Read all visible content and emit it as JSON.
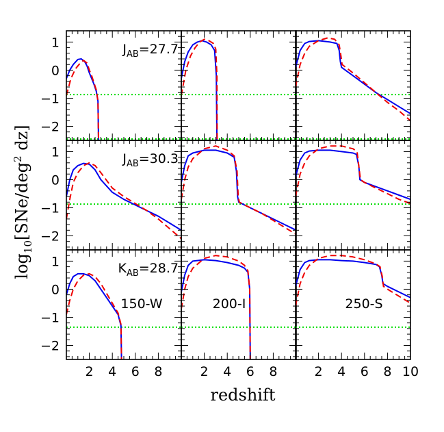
{
  "figure": {
    "xlabel": "redshift",
    "ylabel_main": "log",
    "ylabel_sub": "10",
    "ylabel_rest": "[SNe/deg",
    "ylabel_sup": "2",
    "ylabel_end": " dz]"
  },
  "chart_data": {
    "type": "line",
    "layout": "3x3 grid",
    "xlabel": "redshift",
    "ylabel": "log10[SNe/deg² dz]",
    "xlim": [
      0,
      10
    ],
    "ylim": [
      -2.5,
      1.4
    ],
    "x_ticks": [
      2,
      4,
      6,
      8,
      10
    ],
    "y_ticks": [
      -2,
      -1,
      0,
      1
    ],
    "line_colors": {
      "solid": "#0000ee",
      "dashed": "#ee0000",
      "dotted": "#00dd00"
    },
    "panels": [
      {
        "row": 0,
        "col": 0,
        "label": "J",
        "label_sub": "AB",
        "label_value": "=27.7",
        "threshold_lines": [
          -0.87,
          -2.45
        ],
        "series": [
          {
            "style": "solid",
            "x": [
              0,
              0.3,
              0.6,
              1.0,
              1.3,
              1.6,
              1.8,
              2.0,
              2.2,
              2.4,
              2.6,
              2.75,
              2.8
            ],
            "y": [
              -0.3,
              0.0,
              0.2,
              0.38,
              0.4,
              0.3,
              0.15,
              -0.1,
              -0.3,
              -0.5,
              -0.75,
              -1.1,
              -2.5
            ]
          },
          {
            "style": "dashed",
            "x": [
              0,
              0.4,
              0.8,
              1.2,
              1.5,
              1.8,
              2.0,
              2.2,
              2.4,
              2.6,
              2.75,
              2.8
            ],
            "y": [
              -0.9,
              -0.3,
              0.05,
              0.25,
              0.35,
              0.25,
              0.0,
              -0.2,
              -0.45,
              -0.7,
              -1.1,
              -2.5
            ]
          }
        ]
      },
      {
        "row": 0,
        "col": 1,
        "threshold_lines": [
          -0.87,
          -2.45
        ],
        "series": [
          {
            "style": "solid",
            "x": [
              0,
              0.3,
              0.6,
              1.0,
              1.4,
              1.8,
              2.2,
              2.6,
              2.9,
              3.05,
              3.1
            ],
            "y": [
              -0.3,
              0.3,
              0.65,
              0.9,
              1.0,
              1.05,
              1.0,
              0.9,
              0.7,
              -0.2,
              -2.5
            ]
          },
          {
            "style": "dashed",
            "x": [
              0,
              0.4,
              0.8,
              1.2,
              1.6,
              2.0,
              2.4,
              2.8,
              3.0,
              3.1,
              3.12
            ],
            "y": [
              -0.9,
              0.0,
              0.5,
              0.8,
              1.0,
              1.1,
              1.05,
              0.95,
              0.75,
              -0.2,
              -2.5
            ]
          }
        ]
      },
      {
        "row": 0,
        "col": 2,
        "threshold_lines": [
          -0.87,
          -2.45
        ],
        "series": [
          {
            "style": "solid",
            "x": [
              0,
              0.4,
              0.8,
              1.2,
              2.0,
              3.0,
              3.6,
              3.8,
              3.9,
              4.0,
              5.0,
              6.0,
              7.0,
              8.0,
              9.0,
              10.0
            ],
            "y": [
              0.1,
              0.7,
              0.95,
              1.02,
              1.05,
              1.0,
              0.95,
              0.7,
              0.3,
              0.1,
              -0.2,
              -0.5,
              -0.8,
              -1.05,
              -1.3,
              -1.55
            ]
          },
          {
            "style": "dashed",
            "x": [
              0,
              0.4,
              0.8,
              1.2,
              2.0,
              2.8,
              3.4,
              3.8,
              3.95,
              4.05,
              5.0,
              6.0,
              7.0,
              8.0,
              9.0,
              10.0
            ],
            "y": [
              -0.6,
              0.2,
              0.6,
              0.85,
              1.05,
              1.15,
              1.1,
              0.9,
              0.5,
              0.2,
              -0.1,
              -0.45,
              -0.8,
              -1.15,
              -1.45,
              -1.8
            ]
          }
        ]
      },
      {
        "row": 1,
        "col": 0,
        "label": "J",
        "label_sub": "AB",
        "label_value": "=30.3",
        "threshold_lines": [
          -0.87
        ],
        "series": [
          {
            "style": "solid",
            "x": [
              0,
              0.3,
              0.6,
              1.0,
              1.5,
              2.0,
              2.5,
              3.0,
              4.0,
              5.0,
              6.0,
              7.0,
              8.0,
              9.0,
              10.0
            ],
            "y": [
              -0.6,
              0.0,
              0.35,
              0.5,
              0.58,
              0.55,
              0.35,
              0.0,
              -0.45,
              -0.7,
              -0.9,
              -1.1,
              -1.3,
              -1.55,
              -1.8
            ]
          },
          {
            "style": "dashed",
            "x": [
              0,
              0.3,
              0.6,
              1.0,
              1.5,
              2.0,
              2.5,
              3.0,
              4.0,
              5.0,
              6.0,
              7.0,
              8.0,
              9.0,
              10.0
            ],
            "y": [
              -1.4,
              -0.7,
              -0.1,
              0.25,
              0.5,
              0.6,
              0.5,
              0.25,
              -0.3,
              -0.6,
              -0.85,
              -1.1,
              -1.4,
              -1.75,
              -2.1
            ]
          }
        ]
      },
      {
        "row": 1,
        "col": 1,
        "threshold_lines": [
          -0.87
        ],
        "series": [
          {
            "style": "solid",
            "x": [
              0,
              0.3,
              0.6,
              1.0,
              2.0,
              3.0,
              4.0,
              4.6,
              4.8,
              4.9,
              5.0,
              6.0,
              7.0,
              8.0,
              9.0,
              10.0
            ],
            "y": [
              -0.1,
              0.5,
              0.85,
              0.95,
              1.05,
              1.05,
              0.95,
              0.8,
              0.3,
              -0.6,
              -0.8,
              -1.0,
              -1.2,
              -1.4,
              -1.6,
              -1.8
            ]
          },
          {
            "style": "dashed",
            "x": [
              0,
              0.3,
              0.6,
              1.0,
              2.0,
              3.0,
              4.0,
              4.6,
              4.85,
              4.95,
              5.05,
              6.0,
              7.0,
              8.0,
              9.0,
              10.0
            ],
            "y": [
              -0.7,
              0.0,
              0.45,
              0.75,
              1.1,
              1.2,
              1.05,
              0.85,
              0.3,
              -0.6,
              -0.8,
              -1.0,
              -1.2,
              -1.45,
              -1.7,
              -1.95
            ]
          }
        ]
      },
      {
        "row": 1,
        "col": 2,
        "threshold_lines": [
          -0.87
        ],
        "series": [
          {
            "style": "solid",
            "x": [
              0,
              0.4,
              0.8,
              1.2,
              2.0,
              3.0,
              4.0,
              5.0,
              5.3,
              5.5,
              5.6,
              6.0,
              7.0,
              8.0,
              9.0,
              10.0
            ],
            "y": [
              0.1,
              0.7,
              0.95,
              1.02,
              1.05,
              1.05,
              1.0,
              0.95,
              0.9,
              0.5,
              0.0,
              -0.1,
              -0.25,
              -0.4,
              -0.55,
              -0.7
            ]
          },
          {
            "style": "dashed",
            "x": [
              0,
              0.4,
              0.8,
              1.2,
              2.0,
              3.0,
              4.0,
              5.0,
              5.35,
              5.5,
              5.65,
              6.0,
              7.0,
              8.0,
              9.0,
              10.0
            ],
            "y": [
              -0.6,
              0.2,
              0.6,
              0.85,
              1.1,
              1.2,
              1.2,
              1.1,
              1.0,
              0.5,
              0.0,
              -0.1,
              -0.3,
              -0.5,
              -0.7,
              -0.85
            ]
          }
        ]
      },
      {
        "row": 2,
        "col": 0,
        "label": "K",
        "label_sub": "AB",
        "label_value": "=28.7",
        "name": "150-W",
        "threshold_lines": [
          -1.35
        ],
        "series": [
          {
            "style": "solid",
            "x": [
              0,
              0.3,
              0.6,
              1.0,
              1.5,
              2.0,
              2.5,
              3.0,
              3.5,
              4.0,
              4.5,
              4.75,
              4.8
            ],
            "y": [
              -0.2,
              0.2,
              0.45,
              0.55,
              0.55,
              0.48,
              0.3,
              0.0,
              -0.3,
              -0.6,
              -0.9,
              -1.3,
              -2.5
            ]
          },
          {
            "style": "dashed",
            "x": [
              0,
              0.3,
              0.6,
              1.0,
              1.5,
              2.0,
              2.5,
              3.0,
              3.5,
              4.0,
              4.5,
              4.75,
              4.8
            ],
            "y": [
              -0.9,
              -0.4,
              0.0,
              0.3,
              0.5,
              0.55,
              0.45,
              0.2,
              -0.15,
              -0.5,
              -0.85,
              -1.25,
              -2.5
            ]
          }
        ]
      },
      {
        "row": 2,
        "col": 1,
        "name": "200-I",
        "threshold_lines": [
          -1.35
        ],
        "series": [
          {
            "style": "solid",
            "x": [
              0,
              0.3,
              0.6,
              1.0,
              2.0,
              3.0,
              4.0,
              5.0,
              5.5,
              5.8,
              5.95,
              6.0
            ],
            "y": [
              -0.1,
              0.5,
              0.85,
              1.0,
              1.05,
              1.02,
              0.95,
              0.85,
              0.75,
              0.6,
              0.0,
              -2.5
            ]
          },
          {
            "style": "dashed",
            "x": [
              0,
              0.3,
              0.6,
              1.0,
              2.0,
              3.0,
              4.0,
              5.0,
              5.5,
              5.8,
              5.95,
              6.0
            ],
            "y": [
              -0.7,
              0.0,
              0.45,
              0.75,
              1.1,
              1.2,
              1.15,
              1.0,
              0.85,
              0.65,
              0.0,
              -2.5
            ]
          }
        ]
      },
      {
        "row": 2,
        "col": 2,
        "name": "250-S",
        "threshold_lines": [
          -1.35
        ],
        "series": [
          {
            "style": "solid",
            "x": [
              0,
              0.4,
              0.8,
              1.2,
              2.0,
              3.0,
              4.0,
              5.0,
              6.0,
              7.0,
              7.3,
              7.5,
              7.6,
              8.0,
              9.0,
              10.0
            ],
            "y": [
              0.1,
              0.7,
              0.95,
              1.02,
              1.05,
              1.05,
              1.02,
              1.0,
              0.95,
              0.88,
              0.8,
              0.5,
              0.2,
              0.1,
              -0.1,
              -0.3
            ]
          },
          {
            "style": "dashed",
            "x": [
              0,
              0.4,
              0.8,
              1.2,
              2.0,
              3.0,
              4.0,
              5.0,
              6.0,
              7.0,
              7.35,
              7.55,
              7.65,
              8.0,
              9.0,
              10.0
            ],
            "y": [
              -0.6,
              0.2,
              0.6,
              0.85,
              1.1,
              1.2,
              1.2,
              1.15,
              1.05,
              0.9,
              0.8,
              0.45,
              0.1,
              0.0,
              -0.25,
              -0.5
            ]
          }
        ]
      }
    ]
  }
}
